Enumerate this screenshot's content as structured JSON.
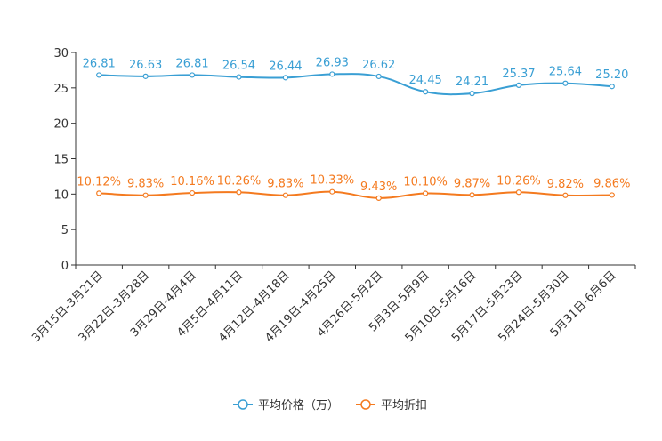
{
  "chart_data": {
    "type": "line",
    "title": "",
    "xlabel": "",
    "ylabel": "",
    "ylim": [
      0,
      30
    ],
    "yticks": [
      0,
      5,
      10,
      15,
      20,
      25,
      30
    ],
    "grid": false,
    "legend_position": "bottom",
    "categories": [
      "3月15日-3月21日",
      "3月22日-3月28日",
      "3月29日-4月4日",
      "4月5日-4月11日",
      "4月12日-4月18日",
      "4月19日-4月25日",
      "4月26日-5月2日",
      "5月3日-5月9日",
      "5月10日-5月16日",
      "5月17日-5月23日",
      "5月24日-5月30日",
      "5月31日-6月6日"
    ],
    "series": [
      {
        "name": "平均价格（万）",
        "color": "#3a9fd4",
        "values": [
          26.81,
          26.63,
          26.81,
          26.54,
          26.44,
          26.93,
          26.62,
          24.45,
          24.21,
          25.37,
          25.64,
          25.2
        ],
        "labels": [
          "26.81",
          "26.63",
          "26.81",
          "26.54",
          "26.44",
          "26.93",
          "26.62",
          "24.45",
          "24.21",
          "25.37",
          "25.64",
          "25.20"
        ]
      },
      {
        "name": "平均折扣",
        "color": "#f47a1f",
        "values": [
          10.12,
          9.83,
          10.16,
          10.26,
          9.83,
          10.33,
          9.43,
          10.1,
          9.87,
          10.26,
          9.82,
          9.86
        ],
        "labels": [
          "10.12%",
          "9.83%",
          "10.16%",
          "10.26%",
          "9.83%",
          "10.33%",
          "9.43%",
          "10.10%",
          "9.87%",
          "10.26%",
          "9.82%",
          "9.86%"
        ]
      }
    ]
  }
}
